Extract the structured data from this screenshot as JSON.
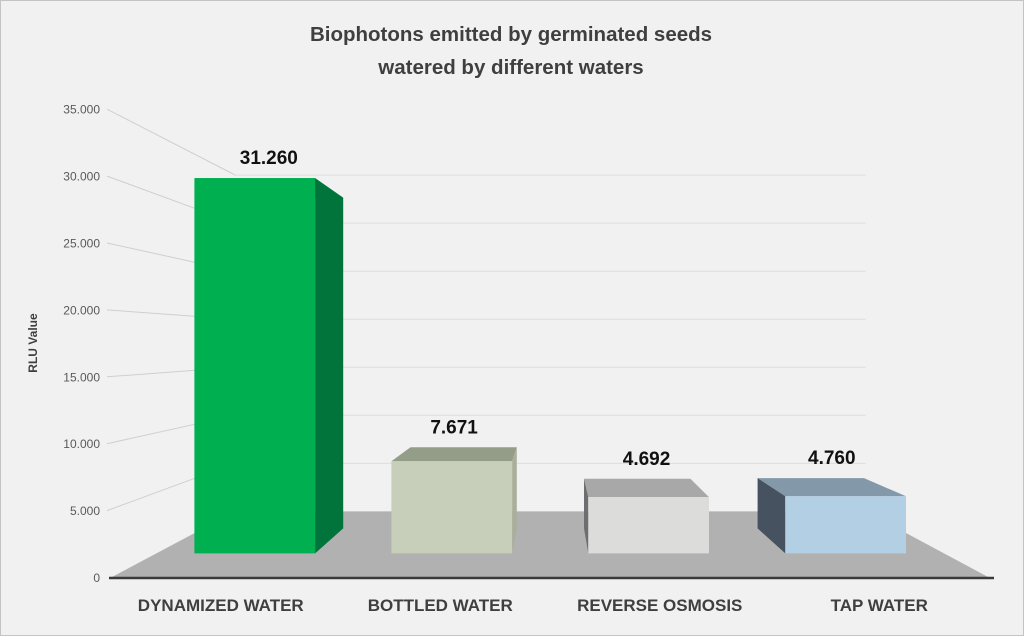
{
  "chart_data": {
    "type": "bar",
    "projection": "3d-perspective",
    "title": "Biophotons emitted by germinated seeds watered by different waters",
    "title_lines": [
      "Biophotons emitted by germinated seeds",
      "watered by different waters"
    ],
    "ylabel": "RLU Value",
    "xlabel": "",
    "categories": [
      "DYNAMIZED WATER",
      "BOTTLED WATER",
      "REVERSE OSMOSIS",
      "TAP WATER"
    ],
    "values": [
      31260,
      7671,
      4692,
      4760
    ],
    "value_labels": [
      "31.260",
      "7.671",
      "4.692",
      "4.760"
    ],
    "ylim": [
      0,
      35000
    ],
    "ytick_step": 5000,
    "grid": true,
    "legend": false,
    "yticks": [
      {
        "value": 0,
        "label": "0"
      },
      {
        "value": 5000,
        "label": "5.000"
      },
      {
        "value": 10000,
        "label": "10.000"
      },
      {
        "value": 15000,
        "label": "15.000"
      },
      {
        "value": 20000,
        "label": "20.000"
      },
      {
        "value": 25000,
        "label": "25.000"
      },
      {
        "value": 30000,
        "label": "30.000"
      },
      {
        "value": 35000,
        "label": "35.000"
      }
    ],
    "bars": [
      {
        "category": "DYNAMIZED WATER",
        "value": 31260,
        "label": "31.260",
        "front": "#00b050",
        "side": "#00743a",
        "top": "#00a84c"
      },
      {
        "category": "BOTTLED WATER",
        "value": 7671,
        "label": "7.671",
        "front": "#c7ceb9",
        "side": "#a9af9b",
        "top": "#949d88"
      },
      {
        "category": "REVERSE OSMOSIS",
        "value": 4692,
        "label": "4.692",
        "front": "#dcdcda",
        "side": "#6e6e72",
        "top": "#a8a8a8"
      },
      {
        "category": "TAP WATER",
        "value": 4760,
        "label": "4.760",
        "front": "#b3cfe4",
        "side": "#46525f",
        "top": "#8399a9"
      }
    ],
    "colors": {
      "background": "#f1f1f1",
      "border": "#c4c4c4",
      "title_text": "#3f3f3f",
      "tick_text": "#595959",
      "category_text": "#3f3f3f",
      "value_label_text": "#111111",
      "grid_line": "#dedede",
      "connector_line": "#cfcfcf",
      "floor": "#b1b1b1",
      "axis_front_line": "#3a3a3a"
    }
  }
}
